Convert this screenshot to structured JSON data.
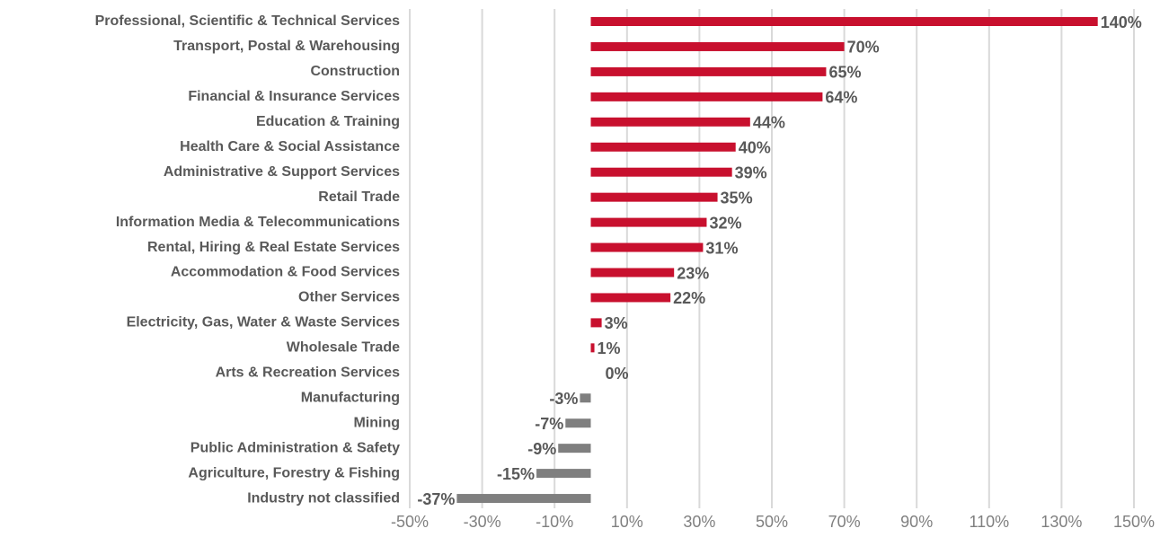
{
  "chart_data": {
    "type": "barh",
    "categories": [
      "Professional, Scientific & Technical Services",
      "Transport, Postal & Warehousing",
      "Construction",
      "Financial & Insurance Services",
      "Education & Training",
      "Health Care & Social Assistance",
      "Administrative & Support Services",
      "Retail Trade",
      "Information Media & Telecommunications",
      "Rental, Hiring & Real Estate Services",
      "Accommodation & Food Services",
      "Other Services",
      "Electricity, Gas, Water & Waste Services",
      "Wholesale Trade",
      "Arts & Recreation Services",
      "Manufacturing",
      "Mining",
      "Public Administration & Safety",
      "Agriculture, Forestry & Fishing",
      "Industry not classified"
    ],
    "values": [
      140,
      70,
      65,
      64,
      44,
      40,
      39,
      35,
      32,
      31,
      23,
      22,
      3,
      1,
      0,
      -3,
      -7,
      -9,
      -15,
      -37
    ],
    "value_labels": [
      "140%",
      "70%",
      "65%",
      "64%",
      "44%",
      "40%",
      "39%",
      "35%",
      "32%",
      "31%",
      "23%",
      "22%",
      "3%",
      "1%",
      "0%",
      "-3%",
      "-7%",
      "-9%",
      "-15%",
      "-37%"
    ],
    "color_positive": "#c8102e",
    "color_negative": "#7f7f7f",
    "xlim": [
      -50,
      150
    ],
    "xticks": [
      {
        "value": -50,
        "label": "-50%"
      },
      {
        "value": -30,
        "label": "-30%"
      },
      {
        "value": -10,
        "label": "-10%"
      },
      {
        "value": 10,
        "label": "10%"
      },
      {
        "value": 30,
        "label": "30%"
      },
      {
        "value": 50,
        "label": "50%"
      },
      {
        "value": 70,
        "label": "70%"
      },
      {
        "value": 90,
        "label": "90%"
      },
      {
        "value": 110,
        "label": "110%"
      },
      {
        "value": 130,
        "label": "130%"
      },
      {
        "value": 150,
        "label": "150%"
      }
    ],
    "grid": true
  }
}
